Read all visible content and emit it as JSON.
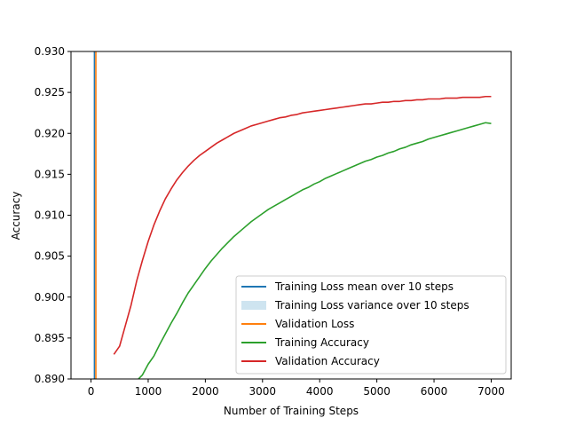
{
  "chart_data": {
    "type": "line",
    "title": "",
    "xlabel": "Number of Training Steps",
    "ylabel": "Accuracy",
    "xlim": [
      -350,
      7350
    ],
    "ylim": [
      0.89,
      0.93
    ],
    "xticks": [
      0,
      1000,
      2000,
      3000,
      4000,
      5000,
      6000,
      7000
    ],
    "xtick_labels": [
      "0",
      "1000",
      "2000",
      "3000",
      "4000",
      "5000",
      "6000",
      "7000"
    ],
    "yticks": [
      0.89,
      0.895,
      0.9,
      0.905,
      0.91,
      0.915,
      0.92,
      0.925,
      0.93
    ],
    "ytick_labels": [
      "0.890",
      "0.895",
      "0.900",
      "0.905",
      "0.910",
      "0.915",
      "0.920",
      "0.925",
      "0.930"
    ],
    "grid": false,
    "legend_position": "bottom-right",
    "series": [
      {
        "name": "Training Loss mean over 10 steps",
        "kind": "line",
        "color": "#1f77b4",
        "x": [
          60,
          60
        ],
        "y": [
          0.93,
          0.89
        ]
      },
      {
        "name": "Training Loss variance over 10 steps",
        "kind": "band",
        "color": "#a6cee3",
        "opacity": 0.55,
        "x": [],
        "y": []
      },
      {
        "name": "Validation Loss",
        "kind": "line",
        "color": "#ff7f0e",
        "x": [
          85,
          85
        ],
        "y": [
          0.93,
          0.89
        ]
      },
      {
        "name": "Training Accuracy",
        "kind": "line",
        "color": "#2ca02c",
        "x": [
          830,
          900,
          1000,
          1100,
          1200,
          1300,
          1400,
          1500,
          1600,
          1700,
          1800,
          1900,
          2000,
          2100,
          2200,
          2300,
          2400,
          2500,
          2600,
          2700,
          2800,
          2900,
          3000,
          3100,
          3200,
          3300,
          3400,
          3500,
          3600,
          3700,
          3800,
          3900,
          4000,
          4100,
          4200,
          4300,
          4400,
          4500,
          4600,
          4700,
          4800,
          4900,
          5000,
          5100,
          5200,
          5300,
          5400,
          5500,
          5600,
          5700,
          5800,
          5900,
          6000,
          6100,
          6200,
          6300,
          6400,
          6500,
          6600,
          6700,
          6800,
          6900,
          7000
        ],
        "y": [
          0.89,
          0.8905,
          0.8918,
          0.8928,
          0.8942,
          0.8955,
          0.8968,
          0.898,
          0.8993,
          0.9005,
          0.9015,
          0.9025,
          0.9035,
          0.9044,
          0.9052,
          0.906,
          0.9067,
          0.9074,
          0.908,
          0.9086,
          0.9092,
          0.9097,
          0.9102,
          0.9107,
          0.9111,
          0.9115,
          0.9119,
          0.9123,
          0.9127,
          0.9131,
          0.9134,
          0.9138,
          0.9141,
          0.9145,
          0.9148,
          0.9151,
          0.9154,
          0.9157,
          0.916,
          0.9163,
          0.9166,
          0.9168,
          0.9171,
          0.9173,
          0.9176,
          0.9178,
          0.9181,
          0.9183,
          0.9186,
          0.9188,
          0.919,
          0.9193,
          0.9195,
          0.9197,
          0.9199,
          0.9201,
          0.9203,
          0.9205,
          0.9207,
          0.9209,
          0.9211,
          0.9213,
          0.9212
        ]
      },
      {
        "name": "Validation Accuracy",
        "kind": "line",
        "color": "#d62728",
        "x": [
          400,
          500,
          600,
          700,
          800,
          900,
          1000,
          1100,
          1200,
          1300,
          1400,
          1500,
          1600,
          1700,
          1800,
          1900,
          2000,
          2100,
          2200,
          2300,
          2400,
          2500,
          2600,
          2700,
          2800,
          2900,
          3000,
          3100,
          3200,
          3300,
          3400,
          3500,
          3600,
          3700,
          3800,
          3900,
          4000,
          4100,
          4200,
          4300,
          4400,
          4500,
          4600,
          4700,
          4800,
          4900,
          5000,
          5100,
          5200,
          5300,
          5400,
          5500,
          5600,
          5700,
          5800,
          5900,
          6000,
          6100,
          6200,
          6300,
          6400,
          6500,
          6600,
          6700,
          6800,
          6900,
          7000
        ],
        "y": [
          0.893,
          0.894,
          0.8965,
          0.899,
          0.902,
          0.9045,
          0.9068,
          0.9088,
          0.9105,
          0.912,
          0.9132,
          0.9143,
          0.9152,
          0.916,
          0.9167,
          0.9173,
          0.9178,
          0.9183,
          0.9188,
          0.9192,
          0.9196,
          0.92,
          0.9203,
          0.9206,
          0.9209,
          0.9211,
          0.9213,
          0.9215,
          0.9217,
          0.9219,
          0.922,
          0.9222,
          0.9223,
          0.9225,
          0.9226,
          0.9227,
          0.9228,
          0.9229,
          0.923,
          0.9231,
          0.9232,
          0.9233,
          0.9234,
          0.9235,
          0.9236,
          0.9236,
          0.9237,
          0.9238,
          0.9238,
          0.9239,
          0.9239,
          0.924,
          0.924,
          0.9241,
          0.9241,
          0.9242,
          0.9242,
          0.9242,
          0.9243,
          0.9243,
          0.9243,
          0.9244,
          0.9244,
          0.9244,
          0.9244,
          0.9245,
          0.9245
        ]
      }
    ]
  }
}
